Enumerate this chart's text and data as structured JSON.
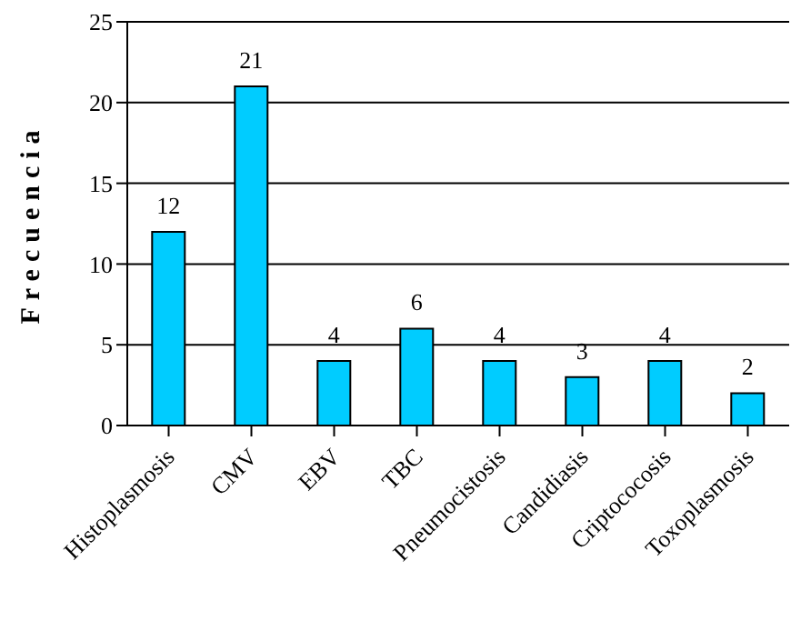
{
  "chart_data": {
    "type": "bar",
    "ylabel": "Frecuencia",
    "categories": [
      "Histoplasmosis",
      "CMV",
      "EBV",
      "TBC",
      "Pneumocistosis",
      "Candidiasis",
      "Criptococosis",
      "Toxoplasmosis"
    ],
    "values": [
      12,
      21,
      4,
      6,
      4,
      3,
      4,
      2
    ],
    "color": "#00ccff",
    "ylim": [
      0,
      25
    ],
    "yticks": [
      0,
      5,
      10,
      15,
      20,
      25
    ],
    "grid": "y",
    "data_labels": true
  }
}
